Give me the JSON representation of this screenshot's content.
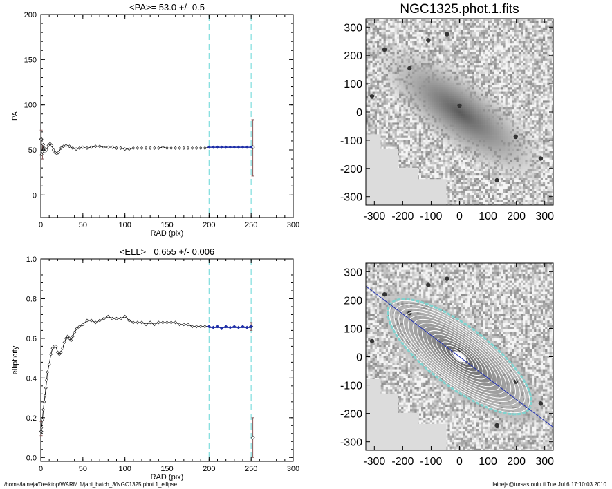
{
  "chart_data": [
    {
      "id": "pa",
      "type": "scatter",
      "title": "<PA>=  53.0 +/-   0.5",
      "xlabel": "RAD (pix)",
      "ylabel": "PA",
      "xlim": [
        0,
        300
      ],
      "ylim": [
        -25,
        200
      ],
      "xticks": [
        "0",
        "50",
        "100",
        "150",
        "200",
        "250",
        "300"
      ],
      "yticks": [
        "0",
        "50",
        "100",
        "150",
        "200"
      ],
      "vlines": [
        200,
        250
      ],
      "vline_color": "#88e0e0",
      "curve_color": "#000000",
      "fit_color": "#1f2fa8",
      "errorbar_color": "#8a5a5a",
      "profile": [
        [
          0.5,
          62
        ],
        [
          1,
          45
        ],
        [
          2,
          48
        ],
        [
          3,
          56
        ],
        [
          4,
          52
        ],
        [
          5,
          48
        ],
        [
          7,
          50
        ],
        [
          9,
          55
        ],
        [
          11,
          57
        ],
        [
          13,
          55
        ],
        [
          15,
          50
        ],
        [
          17,
          47
        ],
        [
          19,
          46
        ],
        [
          21,
          47
        ],
        [
          24,
          52
        ],
        [
          27,
          54
        ],
        [
          30,
          55
        ],
        [
          34,
          54
        ],
        [
          38,
          52
        ],
        [
          42,
          51
        ],
        [
          46,
          52
        ],
        [
          50,
          53
        ],
        [
          55,
          52
        ],
        [
          60,
          53
        ],
        [
          65,
          54
        ],
        [
          70,
          54
        ],
        [
          75,
          53
        ],
        [
          80,
          53
        ],
        [
          85,
          53
        ],
        [
          90,
          52
        ],
        [
          95,
          52
        ],
        [
          100,
          51
        ],
        [
          105,
          51
        ],
        [
          110,
          52
        ],
        [
          115,
          52
        ],
        [
          120,
          52
        ],
        [
          125,
          52
        ],
        [
          130,
          52
        ],
        [
          135,
          52
        ],
        [
          140,
          52
        ],
        [
          145,
          53
        ],
        [
          150,
          52
        ],
        [
          155,
          52
        ],
        [
          160,
          52
        ],
        [
          165,
          52
        ],
        [
          170,
          52
        ],
        [
          175,
          52
        ],
        [
          180,
          52
        ],
        [
          185,
          52
        ],
        [
          190,
          52
        ],
        [
          195,
          52
        ],
        [
          200,
          53
        ],
        [
          205,
          53
        ],
        [
          210,
          53
        ],
        [
          215,
          53
        ],
        [
          220,
          53
        ],
        [
          225,
          53
        ],
        [
          230,
          53
        ],
        [
          235,
          53
        ],
        [
          240,
          53
        ],
        [
          245,
          53
        ],
        [
          250,
          53
        ]
      ],
      "fit": [
        [
          200,
          53
        ],
        [
          250,
          53
        ]
      ],
      "errorbars": [
        {
          "x": 252,
          "y": 53,
          "low": 21,
          "high": 83
        },
        {
          "x": 0.5,
          "y": 62,
          "low": 44,
          "high": 72
        },
        {
          "x": 2,
          "y": 48,
          "low": 40,
          "high": 56
        }
      ]
    },
    {
      "id": "ell",
      "type": "scatter",
      "title": "<ELL>= 0.655 +/-  0.006",
      "xlabel": "RAD (pix)",
      "ylabel": "ellipticity",
      "xlim": [
        0,
        300
      ],
      "ylim": [
        -0.02,
        1.0
      ],
      "xticks": [
        "0",
        "50",
        "100",
        "150",
        "200",
        "250",
        "300"
      ],
      "yticks": [
        "0.0",
        "0.2",
        "0.4",
        "0.6",
        "0.8",
        "1.0"
      ],
      "vlines": [
        200,
        250
      ],
      "vline_color": "#88e0e0",
      "curve_color": "#000000",
      "fit_color": "#1f2fa8",
      "errorbar_color": "#8a5a5a",
      "profile": [
        [
          0.5,
          0.13
        ],
        [
          1,
          0.15
        ],
        [
          2,
          0.19
        ],
        [
          3,
          0.24
        ],
        [
          4,
          0.28
        ],
        [
          5,
          0.31
        ],
        [
          6,
          0.35
        ],
        [
          7,
          0.39
        ],
        [
          8,
          0.43
        ],
        [
          10,
          0.47
        ],
        [
          12,
          0.52
        ],
        [
          14,
          0.55
        ],
        [
          16,
          0.56
        ],
        [
          18,
          0.56
        ],
        [
          20,
          0.53
        ],
        [
          22,
          0.52
        ],
        [
          24,
          0.53
        ],
        [
          26,
          0.55
        ],
        [
          28,
          0.58
        ],
        [
          30,
          0.6
        ],
        [
          32,
          0.61
        ],
        [
          34,
          0.6
        ],
        [
          36,
          0.59
        ],
        [
          38,
          0.61
        ],
        [
          40,
          0.63
        ],
        [
          43,
          0.65
        ],
        [
          46,
          0.66
        ],
        [
          50,
          0.67
        ],
        [
          55,
          0.69
        ],
        [
          60,
          0.69
        ],
        [
          65,
          0.68
        ],
        [
          70,
          0.69
        ],
        [
          75,
          0.7
        ],
        [
          80,
          0.71
        ],
        [
          85,
          0.7
        ],
        [
          90,
          0.7
        ],
        [
          95,
          0.7
        ],
        [
          100,
          0.71
        ],
        [
          105,
          0.69
        ],
        [
          110,
          0.68
        ],
        [
          115,
          0.68
        ],
        [
          120,
          0.68
        ],
        [
          125,
          0.67
        ],
        [
          130,
          0.68
        ],
        [
          135,
          0.67
        ],
        [
          140,
          0.68
        ],
        [
          145,
          0.68
        ],
        [
          150,
          0.68
        ],
        [
          155,
          0.68
        ],
        [
          160,
          0.68
        ],
        [
          165,
          0.67
        ],
        [
          170,
          0.67
        ],
        [
          175,
          0.67
        ],
        [
          180,
          0.66
        ],
        [
          185,
          0.66
        ],
        [
          190,
          0.66
        ],
        [
          195,
          0.66
        ],
        [
          200,
          0.66
        ],
        [
          205,
          0.655
        ],
        [
          210,
          0.66
        ],
        [
          215,
          0.65
        ],
        [
          220,
          0.66
        ],
        [
          225,
          0.655
        ],
        [
          230,
          0.66
        ],
        [
          235,
          0.655
        ],
        [
          240,
          0.66
        ],
        [
          245,
          0.655
        ],
        [
          250,
          0.66
        ]
      ],
      "fit": [
        [
          200,
          0.655
        ],
        [
          250,
          0.655
        ]
      ],
      "errorbars": [
        {
          "x": 252,
          "y": 0.1,
          "low": 0.0,
          "high": 0.2
        },
        {
          "x": 250,
          "y": 0.66,
          "low": 0.64,
          "high": 0.68
        },
        {
          "x": 0.5,
          "y": 0.13,
          "low": 0.11,
          "high": 0.18
        }
      ]
    }
  ],
  "images": [
    {
      "id": "image-top",
      "title": "NGC1325.phot.1.fits",
      "xticks": [
        "-300",
        "-200",
        "-100",
        "0",
        "100",
        "200",
        "300"
      ],
      "yticks": [
        "300",
        "200",
        "100",
        "0",
        "-100",
        "-200",
        "-300"
      ],
      "galaxy_pa": 53,
      "galaxy_ell": 0.655,
      "masked_color": "#dcdcdc"
    },
    {
      "id": "image-bottom",
      "title": "",
      "xticks": [
        "-300",
        "-200",
        "-100",
        "0",
        "100",
        "200",
        "300"
      ],
      "yticks": [
        "300",
        "200",
        "100",
        "0",
        "-100",
        "-200",
        "-300"
      ],
      "galaxy_pa": 53,
      "galaxy_ell": 0.655,
      "contour_color": "#ffffff",
      "outer_contour_color": "#7fd3cf",
      "major_axis_color": "#2030b0",
      "masked_color": "#dcdcdc"
    }
  ],
  "footer": {
    "path": "/home/laineja/Desktop/WARM.1/jani_batch_3/NGC1325.phot.1_ellipse",
    "stamp": "laineja@tursas.oulu.fi  Tue Jul  6 17:10:03 2010"
  }
}
